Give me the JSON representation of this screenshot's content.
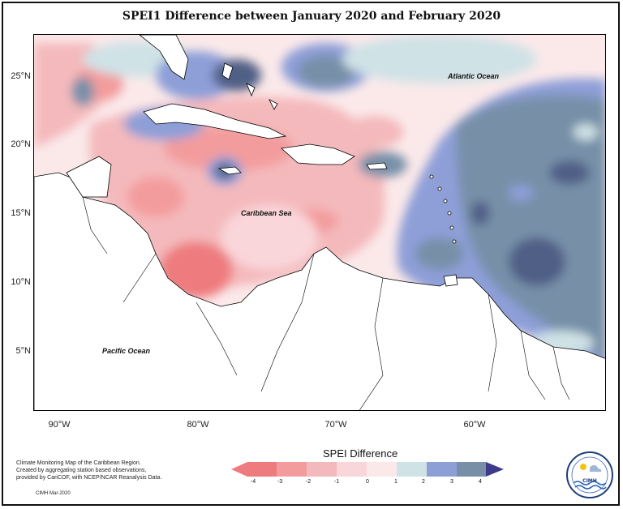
{
  "title": "SPEI1 Difference between January 2020 and February 2020",
  "map": {
    "lat_labels": [
      "25°N",
      "20°N",
      "15°N",
      "10°N",
      "5°N"
    ],
    "lon_labels": [
      "90°W",
      "80°W",
      "70°W",
      "60°W"
    ],
    "place_labels": {
      "atlantic": "Atlantic Ocean",
      "caribbean": "Caribbean Sea",
      "pacific": "Pacific Ocean"
    }
  },
  "legend": {
    "title": "SPEI Difference",
    "ticks": [
      "-4",
      "-3",
      "-2",
      "-1",
      "0",
      "1",
      "2",
      "3",
      "4"
    ],
    "colors": [
      "#ee7b7e",
      "#f39c9d",
      "#f4b9bc",
      "#f9d6da",
      "#fbe9ea",
      "#cfe2e6",
      "#8e9fd8",
      "#7790a8",
      "#505e86",
      "#3e3a8a"
    ]
  },
  "credits": {
    "line1": "Climate Monitoring Map of the Caribbean Region.",
    "line2": "Created by aggregating station based observations,",
    "line3": "provided by CariCOF, with NCEP/NCAR Reanalysis Data.",
    "date": "CIMH Mar-2020"
  },
  "logo": {
    "text": "CIMH"
  }
}
